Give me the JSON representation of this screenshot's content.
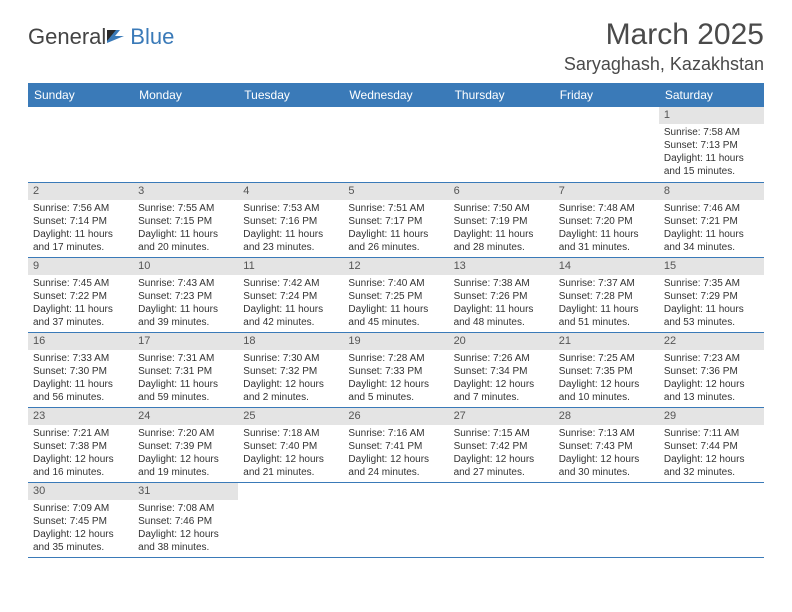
{
  "brand": {
    "part1": "General",
    "part2": "Blue"
  },
  "title": {
    "month": "March 2025",
    "location": "Saryaghash, Kazakhstan"
  },
  "colors": {
    "header_bg": "#3a7ab8",
    "header_text": "#ffffff",
    "daynum_bg": "#e4e4e4",
    "border": "#3a7ab8",
    "text": "#333333",
    "title_text": "#4a4a4a"
  },
  "typography": {
    "title_fontsize": 30,
    "location_fontsize": 18,
    "header_fontsize": 12,
    "daynum_fontsize": 11,
    "body_fontsize": 10
  },
  "weekdays": [
    "Sunday",
    "Monday",
    "Tuesday",
    "Wednesday",
    "Thursday",
    "Friday",
    "Saturday"
  ],
  "grid": [
    [
      null,
      null,
      null,
      null,
      null,
      null,
      {
        "n": "1",
        "sr": "Sunrise: 7:58 AM",
        "ss": "Sunset: 7:13 PM",
        "dl": "Daylight: 11 hours and 15 minutes."
      }
    ],
    [
      {
        "n": "2",
        "sr": "Sunrise: 7:56 AM",
        "ss": "Sunset: 7:14 PM",
        "dl": "Daylight: 11 hours and 17 minutes."
      },
      {
        "n": "3",
        "sr": "Sunrise: 7:55 AM",
        "ss": "Sunset: 7:15 PM",
        "dl": "Daylight: 11 hours and 20 minutes."
      },
      {
        "n": "4",
        "sr": "Sunrise: 7:53 AM",
        "ss": "Sunset: 7:16 PM",
        "dl": "Daylight: 11 hours and 23 minutes."
      },
      {
        "n": "5",
        "sr": "Sunrise: 7:51 AM",
        "ss": "Sunset: 7:17 PM",
        "dl": "Daylight: 11 hours and 26 minutes."
      },
      {
        "n": "6",
        "sr": "Sunrise: 7:50 AM",
        "ss": "Sunset: 7:19 PM",
        "dl": "Daylight: 11 hours and 28 minutes."
      },
      {
        "n": "7",
        "sr": "Sunrise: 7:48 AM",
        "ss": "Sunset: 7:20 PM",
        "dl": "Daylight: 11 hours and 31 minutes."
      },
      {
        "n": "8",
        "sr": "Sunrise: 7:46 AM",
        "ss": "Sunset: 7:21 PM",
        "dl": "Daylight: 11 hours and 34 minutes."
      }
    ],
    [
      {
        "n": "9",
        "sr": "Sunrise: 7:45 AM",
        "ss": "Sunset: 7:22 PM",
        "dl": "Daylight: 11 hours and 37 minutes."
      },
      {
        "n": "10",
        "sr": "Sunrise: 7:43 AM",
        "ss": "Sunset: 7:23 PM",
        "dl": "Daylight: 11 hours and 39 minutes."
      },
      {
        "n": "11",
        "sr": "Sunrise: 7:42 AM",
        "ss": "Sunset: 7:24 PM",
        "dl": "Daylight: 11 hours and 42 minutes."
      },
      {
        "n": "12",
        "sr": "Sunrise: 7:40 AM",
        "ss": "Sunset: 7:25 PM",
        "dl": "Daylight: 11 hours and 45 minutes."
      },
      {
        "n": "13",
        "sr": "Sunrise: 7:38 AM",
        "ss": "Sunset: 7:26 PM",
        "dl": "Daylight: 11 hours and 48 minutes."
      },
      {
        "n": "14",
        "sr": "Sunrise: 7:37 AM",
        "ss": "Sunset: 7:28 PM",
        "dl": "Daylight: 11 hours and 51 minutes."
      },
      {
        "n": "15",
        "sr": "Sunrise: 7:35 AM",
        "ss": "Sunset: 7:29 PM",
        "dl": "Daylight: 11 hours and 53 minutes."
      }
    ],
    [
      {
        "n": "16",
        "sr": "Sunrise: 7:33 AM",
        "ss": "Sunset: 7:30 PM",
        "dl": "Daylight: 11 hours and 56 minutes."
      },
      {
        "n": "17",
        "sr": "Sunrise: 7:31 AM",
        "ss": "Sunset: 7:31 PM",
        "dl": "Daylight: 11 hours and 59 minutes."
      },
      {
        "n": "18",
        "sr": "Sunrise: 7:30 AM",
        "ss": "Sunset: 7:32 PM",
        "dl": "Daylight: 12 hours and 2 minutes."
      },
      {
        "n": "19",
        "sr": "Sunrise: 7:28 AM",
        "ss": "Sunset: 7:33 PM",
        "dl": "Daylight: 12 hours and 5 minutes."
      },
      {
        "n": "20",
        "sr": "Sunrise: 7:26 AM",
        "ss": "Sunset: 7:34 PM",
        "dl": "Daylight: 12 hours and 7 minutes."
      },
      {
        "n": "21",
        "sr": "Sunrise: 7:25 AM",
        "ss": "Sunset: 7:35 PM",
        "dl": "Daylight: 12 hours and 10 minutes."
      },
      {
        "n": "22",
        "sr": "Sunrise: 7:23 AM",
        "ss": "Sunset: 7:36 PM",
        "dl": "Daylight: 12 hours and 13 minutes."
      }
    ],
    [
      {
        "n": "23",
        "sr": "Sunrise: 7:21 AM",
        "ss": "Sunset: 7:38 PM",
        "dl": "Daylight: 12 hours and 16 minutes."
      },
      {
        "n": "24",
        "sr": "Sunrise: 7:20 AM",
        "ss": "Sunset: 7:39 PM",
        "dl": "Daylight: 12 hours and 19 minutes."
      },
      {
        "n": "25",
        "sr": "Sunrise: 7:18 AM",
        "ss": "Sunset: 7:40 PM",
        "dl": "Daylight: 12 hours and 21 minutes."
      },
      {
        "n": "26",
        "sr": "Sunrise: 7:16 AM",
        "ss": "Sunset: 7:41 PM",
        "dl": "Daylight: 12 hours and 24 minutes."
      },
      {
        "n": "27",
        "sr": "Sunrise: 7:15 AM",
        "ss": "Sunset: 7:42 PM",
        "dl": "Daylight: 12 hours and 27 minutes."
      },
      {
        "n": "28",
        "sr": "Sunrise: 7:13 AM",
        "ss": "Sunset: 7:43 PM",
        "dl": "Daylight: 12 hours and 30 minutes."
      },
      {
        "n": "29",
        "sr": "Sunrise: 7:11 AM",
        "ss": "Sunset: 7:44 PM",
        "dl": "Daylight: 12 hours and 32 minutes."
      }
    ],
    [
      {
        "n": "30",
        "sr": "Sunrise: 7:09 AM",
        "ss": "Sunset: 7:45 PM",
        "dl": "Daylight: 12 hours and 35 minutes."
      },
      {
        "n": "31",
        "sr": "Sunrise: 7:08 AM",
        "ss": "Sunset: 7:46 PM",
        "dl": "Daylight: 12 hours and 38 minutes."
      },
      null,
      null,
      null,
      null,
      null
    ]
  ]
}
